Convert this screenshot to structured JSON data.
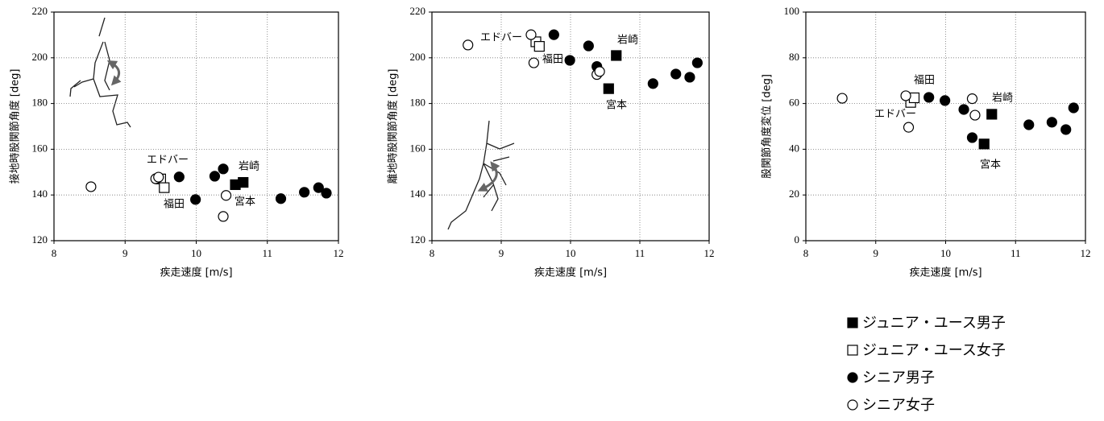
{
  "chart_data": [
    {
      "type": "scatter",
      "x_label": "疾走速度 [m/s]",
      "y_label": "接地時股関節角度 [deg]",
      "xlim": [
        8,
        12
      ],
      "xticks": [
        8,
        9,
        10,
        11,
        12
      ],
      "ylim": [
        120,
        220
      ],
      "yticks": [
        120,
        140,
        160,
        180,
        200,
        220
      ],
      "grid": true,
      "annotations": [
        "エドバー",
        "福田",
        "宮本",
        "岩崎"
      ],
      "series": [
        {
          "name": "ジュニア・ユース男子",
          "color": "#000000",
          "marker": "square",
          "filled": true,
          "x": [
            10.55,
            10.66
          ],
          "values": [
            144.5,
            145.5
          ]
        },
        {
          "name": "ジュニア・ユース女子",
          "color": "#000000",
          "marker": "square",
          "filled": false,
          "x": [
            9.5,
            9.55
          ],
          "values": [
            147,
            143.2
          ]
        },
        {
          "name": "シニア男子",
          "color": "#000000",
          "marker": "circle",
          "filled": true,
          "x": [
            9.76,
            9.99,
            10.26,
            10.38,
            11.19,
            11.52,
            11.72,
            11.83
          ],
          "values": [
            147.9,
            138,
            148.2,
            151.4,
            138.4,
            141.2,
            143.2,
            140.8
          ]
        },
        {
          "name": "シニア女子",
          "color": "#000000",
          "marker": "circle",
          "filled": false,
          "x": [
            8.52,
            9.43,
            9.47,
            10.38,
            10.42
          ],
          "values": [
            143.6,
            147.1,
            147.8,
            130.6,
            139.8
          ]
        }
      ]
    },
    {
      "type": "scatter",
      "x_label": "疾走速度 [m/s]",
      "y_label": "離地時股関節角度 [deg]",
      "xlim": [
        8,
        12
      ],
      "xticks": [
        8,
        9,
        10,
        11,
        12
      ],
      "ylim": [
        120,
        220
      ],
      "yticks": [
        120,
        140,
        160,
        180,
        200,
        220
      ],
      "grid": true,
      "annotations": [
        "エドバー",
        "福田",
        "宮本",
        "岩崎"
      ],
      "series": [
        {
          "name": "ジュニア・ユース男子",
          "color": "#000000",
          "marker": "square",
          "filled": true,
          "x": [
            10.55,
            10.66
          ],
          "values": [
            186.5,
            201
          ]
        },
        {
          "name": "ジュニア・ユース女子",
          "color": "#000000",
          "marker": "square",
          "filled": false,
          "x": [
            9.5,
            9.55
          ],
          "values": [
            207,
            205
          ]
        },
        {
          "name": "シニア男子",
          "color": "#000000",
          "marker": "circle",
          "filled": true,
          "x": [
            9.76,
            9.99,
            10.26,
            10.38,
            11.19,
            11.52,
            11.72,
            11.83
          ],
          "values": [
            210.1,
            198.9,
            205.2,
            196.2,
            188.7,
            192.9,
            191.5,
            197.8
          ]
        },
        {
          "name": "シニア女子",
          "color": "#000000",
          "marker": "circle",
          "filled": false,
          "x": [
            8.52,
            9.43,
            9.47,
            10.38,
            10.42
          ],
          "values": [
            205.6,
            210.1,
            197.8,
            192.7,
            194
          ]
        }
      ]
    },
    {
      "type": "scatter",
      "x_label": "疾走速度 [m/s]",
      "y_label": "股関節角度変位 [deg]",
      "xlim": [
        8,
        12
      ],
      "xticks": [
        8,
        9,
        10,
        11,
        12
      ],
      "ylim": [
        0,
        100
      ],
      "yticks": [
        0,
        20,
        40,
        60,
        80,
        100
      ],
      "grid": true,
      "annotations": [
        "エドバー",
        "福田",
        "宮本",
        "岩崎"
      ],
      "legend": "below-right",
      "series": [
        {
          "name": "ジュニア・ユース男子",
          "color": "#000000",
          "marker": "square",
          "filled": true,
          "x": [
            10.55,
            10.66
          ],
          "values": [
            42.3,
            55.3
          ]
        },
        {
          "name": "ジュニア・ユース女子",
          "color": "#000000",
          "marker": "square",
          "filled": false,
          "x": [
            9.5,
            9.55
          ],
          "values": [
            60.5,
            62.5
          ]
        },
        {
          "name": "シニア男子",
          "color": "#000000",
          "marker": "circle",
          "filled": true,
          "x": [
            9.76,
            9.99,
            10.26,
            10.38,
            11.19,
            11.52,
            11.72,
            11.83
          ],
          "values": [
            62.7,
            61.3,
            57.4,
            45.1,
            50.7,
            51.8,
            48.6,
            58.1
          ]
        },
        {
          "name": "シニア女子",
          "color": "#000000",
          "marker": "circle",
          "filled": false,
          "x": [
            8.52,
            9.43,
            9.47,
            10.38,
            10.42
          ],
          "values": [
            62.3,
            63.4,
            49.6,
            62.1,
            54.9
          ]
        }
      ]
    }
  ]
}
